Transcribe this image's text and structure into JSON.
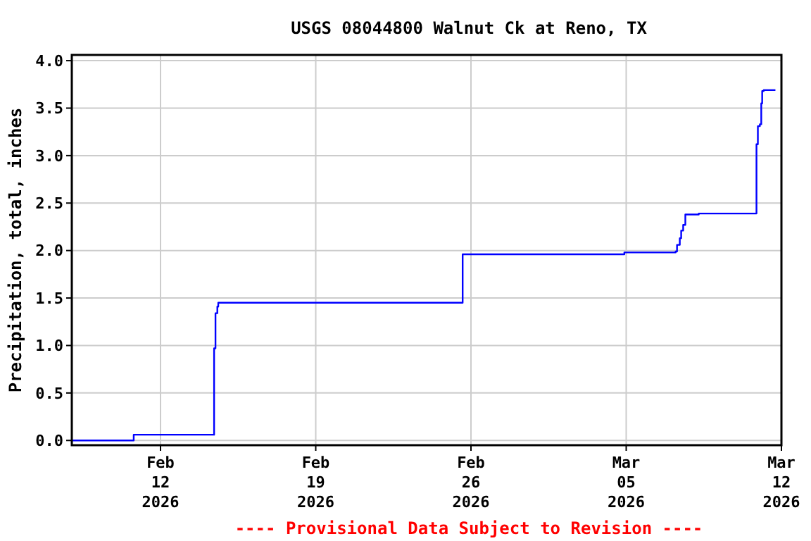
{
  "chart_data": {
    "type": "step",
    "title": "USGS 08044800 Walnut Ck at Reno, TX",
    "ylabel": "Precipitation, total, inches",
    "annotations": [
      "---- Provisional Data Subject to Revision ----"
    ],
    "x": [
      "2026-02-08T00:00",
      "2026-02-10T19:00",
      "2026-02-14T10:00",
      "2026-02-14T11:30",
      "2026-02-14T13:30",
      "2026-02-14T14:30",
      "2026-02-25T15:00",
      "2026-03-04T22:00",
      "2026-03-07T05:30",
      "2026-03-07T07:00",
      "2026-03-07T10:00",
      "2026-03-07T11:30",
      "2026-03-07T13:40",
      "2026-03-07T16:00",
      "2026-03-08T06:30",
      "2026-03-10T21:00",
      "2026-03-10T22:30",
      "2026-03-11T00:40",
      "2026-03-11T02:10",
      "2026-03-11T03:10",
      "2026-03-11T04:50",
      "2026-03-11T17:30"
    ],
    "series": [
      {
        "color": "#0000ff",
        "values": [
          0.0,
          0.06,
          0.97,
          1.34,
          1.41,
          1.45,
          1.96,
          1.98,
          1.99,
          2.06,
          2.13,
          2.21,
          2.27,
          2.38,
          2.39,
          3.12,
          3.31,
          3.33,
          3.55,
          3.68,
          3.69,
          3.69
        ]
      }
    ],
    "xlim": [
      "2026-02-08T00:00",
      "2026-03-12T00:00"
    ],
    "xticks": [
      {
        "value": "2026-02-12T00:00",
        "label": "Feb\n12\n2026"
      },
      {
        "value": "2026-02-19T00:00",
        "label": "Feb\n19\n2026"
      },
      {
        "value": "2026-02-26T00:00",
        "label": "Feb\n26\n2026"
      },
      {
        "value": "2026-03-05T00:00",
        "label": "Mar\n05\n2026"
      },
      {
        "value": "2026-03-12T00:00",
        "label": "Mar\n12\n2026"
      }
    ],
    "ylim": [
      -0.05,
      4.06
    ],
    "yticks": [
      {
        "value": 0,
        "label": "0.0"
      },
      {
        "value": 0.5,
        "label": "0.5"
      },
      {
        "value": 1,
        "label": "1.0"
      },
      {
        "value": 1.5,
        "label": "1.5"
      },
      {
        "value": 2,
        "label": "2.0"
      },
      {
        "value": 2.5,
        "label": "2.5"
      },
      {
        "value": 3,
        "label": "3.0"
      },
      {
        "value": 3.5,
        "label": "3.5"
      },
      {
        "value": 4,
        "label": "4.0"
      }
    ],
    "grid": true,
    "line_style": "solid",
    "marker": "none"
  }
}
